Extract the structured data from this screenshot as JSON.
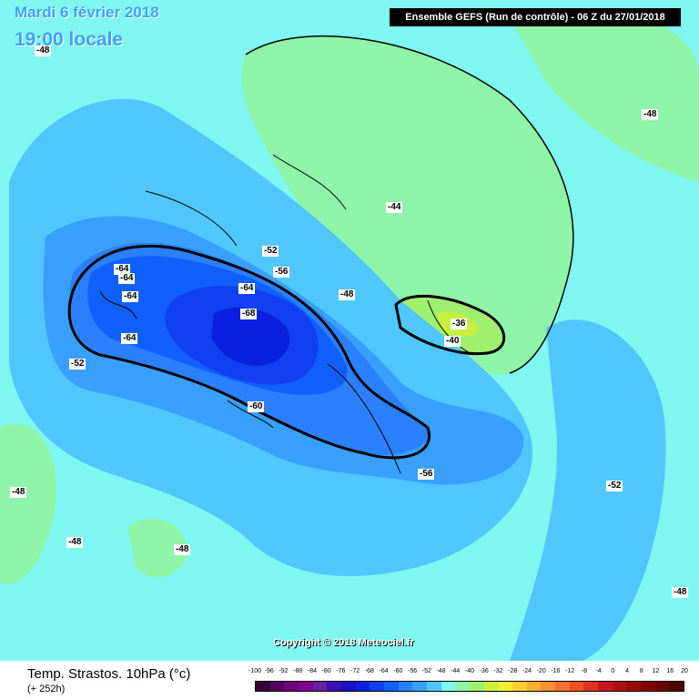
{
  "header": {
    "date_title": "Mardi 6 février 2018",
    "time_title": "19:00 locale",
    "run_info": "Ensemble GEFS  (Run de contrôle)  -  06 Z du 27/01/2018"
  },
  "copyright": "Copyright © 2018 Meteociel.fr",
  "footer": {
    "variable": "Temp. Strastos. 10hPa (°c)",
    "lead_time": "(+ 252h)"
  },
  "scale": {
    "ticks": [
      "-100",
      "-96",
      "-92",
      "-88",
      "-84",
      "-80",
      "-76",
      "-72",
      "-68",
      "-64",
      "-60",
      "-56",
      "-52",
      "-48",
      "-44",
      "-40",
      "-36",
      "-32",
      "-28",
      "-24",
      "-20",
      "-16",
      "-12",
      "-8",
      "-4",
      "0",
      "4",
      "8",
      "12",
      "16",
      "20"
    ],
    "colors": [
      "#3a003a",
      "#55005a",
      "#70007a",
      "#80008f",
      "#6a1fa0",
      "#3a10b0",
      "#1a10c8",
      "#0a20e0",
      "#1040f0",
      "#1060ff",
      "#2a80ff",
      "#3aa0ff",
      "#50c8ff",
      "#7ff7f0",
      "#8ef5a8",
      "#a0f070",
      "#c8f040",
      "#f0f030",
      "#f8d030",
      "#f8b030",
      "#f89030",
      "#f87030",
      "#f05020",
      "#e03020",
      "#c81818",
      "#b01010",
      "#980808",
      "#800000",
      "#680000",
      "#500000"
    ]
  },
  "contour_labels": [
    {
      "text": "-48"
    },
    {
      "text": "-48"
    },
    {
      "text": "-44"
    },
    {
      "text": "-52"
    },
    {
      "text": "-56"
    },
    {
      "text": "-64"
    },
    {
      "text": "-64"
    },
    {
      "text": "-64"
    },
    {
      "text": "-64"
    },
    {
      "text": "-64"
    },
    {
      "text": "-68"
    },
    {
      "text": "-60"
    },
    {
      "text": "-52"
    },
    {
      "text": "-48"
    },
    {
      "text": "-36"
    },
    {
      "text": "-40"
    },
    {
      "text": "-56"
    },
    {
      "text": "-52"
    },
    {
      "text": "-48"
    },
    {
      "text": "-48"
    },
    {
      "text": "-48"
    },
    {
      "text": "-48"
    }
  ]
}
